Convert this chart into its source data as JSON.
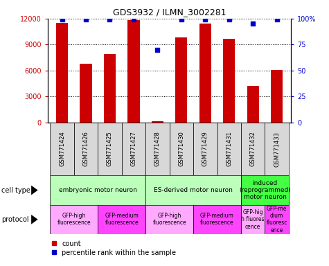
{
  "title": "GDS3932 / ILMN_3002281",
  "samples": [
    "GSM771424",
    "GSM771426",
    "GSM771425",
    "GSM771427",
    "GSM771428",
    "GSM771430",
    "GSM771429",
    "GSM771431",
    "GSM771432",
    "GSM771433"
  ],
  "counts": [
    11500,
    6800,
    7900,
    11800,
    100,
    9800,
    11400,
    9700,
    4200,
    6100
  ],
  "percentile_ranks": [
    99,
    99,
    99,
    99,
    70,
    99,
    99,
    99,
    95,
    99
  ],
  "bar_color": "#cc0000",
  "dot_color": "#0000cc",
  "ylim_left": [
    0,
    12000
  ],
  "ylim_right": [
    0,
    100
  ],
  "yticks_left": [
    0,
    3000,
    6000,
    9000,
    12000
  ],
  "yticks_right": [
    0,
    25,
    50,
    75,
    100
  ],
  "ytick_labels_right": [
    "0",
    "25",
    "50",
    "75",
    "100%"
  ],
  "cell_type_groups": [
    {
      "label": "embryonic motor neuron",
      "start": 0,
      "end": 4,
      "color": "#bbffbb"
    },
    {
      "label": "ES-derived motor neuron",
      "start": 4,
      "end": 8,
      "color": "#bbffbb"
    },
    {
      "label": "induced\n(reprogrammed)\nmotor neuron",
      "start": 8,
      "end": 10,
      "color": "#44ff44"
    }
  ],
  "protocol_groups": [
    {
      "label": "GFP-high\nfluorescence",
      "start": 0,
      "end": 2,
      "color": "#ffaaff"
    },
    {
      "label": "GFP-medium\nfluorescence",
      "start": 2,
      "end": 4,
      "color": "#ff44ff"
    },
    {
      "label": "GFP-high\nfluorescence",
      "start": 4,
      "end": 6,
      "color": "#ffaaff"
    },
    {
      "label": "GFP-medium\nfluorescence",
      "start": 6,
      "end": 8,
      "color": "#ff44ff"
    },
    {
      "label": "GFP-hig\nh fluores\ncence",
      "start": 8,
      "end": 9,
      "color": "#ffaaff"
    },
    {
      "label": "GFP-me\ndium\nfluoresc\nence",
      "start": 9,
      "end": 10,
      "color": "#ff44ff"
    }
  ],
  "legend_count_label": "count",
  "legend_pct_label": "percentile rank within the sample",
  "cell_type_label": "cell type",
  "protocol_label": "protocol",
  "tick_color_left": "#cc0000",
  "tick_color_right": "#0000cc",
  "bar_width": 0.5,
  "sample_bg_color": "#d8d8d8",
  "fig_bg_color": "#ffffff"
}
